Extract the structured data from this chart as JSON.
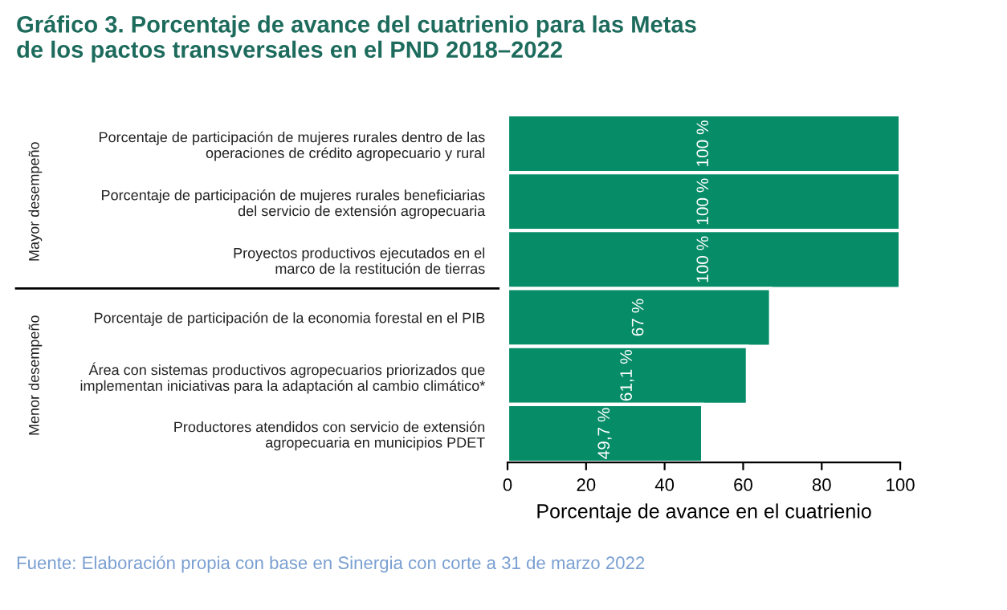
{
  "chart_data": {
    "type": "bar",
    "orientation": "horizontal",
    "title": "Gráfico 3. Porcentaje de avance del cuatrienio para las Metas\nde los pactos transversales en el PND 2018–2022",
    "categories": [
      "Porcentaje de participación de mujeres rurales dentro de las\noperaciones de crédito agropecuario y rural",
      "Porcentaje de participación de mujeres rurales beneficiarias\ndel servicio de extensión agropecuaria",
      "Proyectos productivos ejecutados en el\nmarco de la restitución de tierras",
      "Porcentaje de participación de la economia forestal en el PIB",
      "Área con sistemas productivos agropecuarios priorizados que\nimplementan iniciativas para la adaptación al cambio climático*",
      "Productores atendidos con servicio de extensión\nagropecuaria en municipios PDET"
    ],
    "values": [
      100,
      100,
      100,
      67,
      61.1,
      49.7
    ],
    "value_labels": [
      "100 %",
      "100 %",
      "100 %",
      "67 %",
      "61,1 %",
      "49,7 %"
    ],
    "color": "#078c68",
    "xlabel": "Porcentaje de avance en el cuatrienio",
    "xlim": [
      0,
      100
    ],
    "xticks": [
      0,
      20,
      40,
      60,
      80,
      100
    ],
    "grid": false,
    "annotations": [
      "Mayor desempeño",
      "Menor desempeño",
      "Fuente: Elaboración propia con base en Sinergia con corte a 31 de marzo 2022"
    ]
  }
}
